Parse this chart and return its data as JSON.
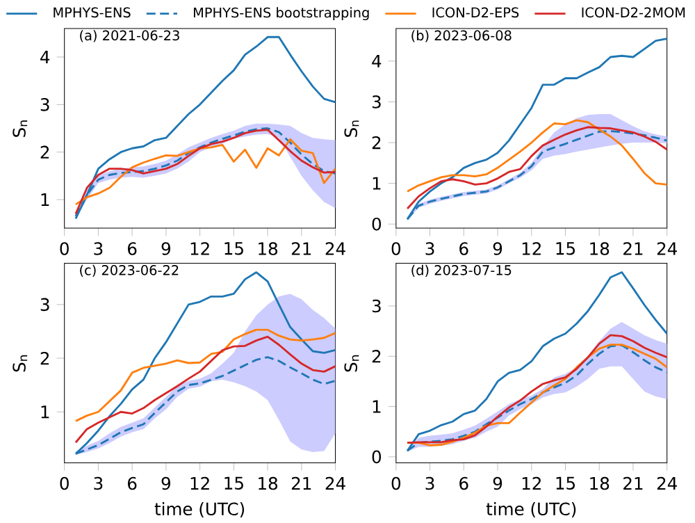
{
  "chart_data": [
    {
      "type": "line",
      "title": "(a) 2021-06-23",
      "ylabel": "S$_{n}$",
      "x": [
        1,
        2,
        3,
        4,
        5,
        6,
        7,
        8,
        9,
        10,
        11,
        12,
        13,
        14,
        15,
        16,
        17,
        18,
        19,
        20,
        21,
        22,
        23,
        24
      ],
      "xlim": [
        0,
        24
      ],
      "xticks": [
        0,
        3,
        6,
        9,
        12,
        15,
        18,
        21,
        24
      ],
      "ylim": [
        0.4,
        4.6
      ],
      "yticks": [
        1,
        2,
        3,
        4
      ],
      "legend": "top",
      "series": [
        {
          "name": "MPHYS-ENS",
          "color": "#1f77b4",
          "line_style": "solid",
          "values": [
            0.6,
            1.1,
            1.65,
            1.85,
            2.0,
            2.08,
            2.12,
            2.25,
            2.3,
            2.55,
            2.8,
            3.0,
            3.25,
            3.5,
            3.72,
            4.05,
            4.22,
            4.42,
            4.42,
            4.05,
            3.7,
            3.38,
            3.12,
            3.05
          ]
        },
        {
          "name": "MPHYS-ENS bootstrapping",
          "color": "#1f77b4",
          "line_style": "dashed",
          "values": [
            0.65,
            1.1,
            1.42,
            1.52,
            1.56,
            1.58,
            1.6,
            1.65,
            1.72,
            1.82,
            1.98,
            2.1,
            2.2,
            2.28,
            2.35,
            2.43,
            2.48,
            2.5,
            2.42,
            2.2,
            1.95,
            1.75,
            1.6,
            1.55
          ],
          "lower": [
            0.6,
            1.0,
            1.35,
            1.42,
            1.46,
            1.48,
            1.46,
            1.5,
            1.55,
            1.65,
            1.8,
            2.0,
            2.1,
            2.18,
            2.28,
            2.33,
            2.37,
            2.38,
            2.3,
            1.9,
            1.5,
            1.2,
            0.95,
            0.82
          ],
          "upper": [
            0.7,
            1.2,
            1.5,
            1.6,
            1.65,
            1.68,
            1.7,
            1.75,
            1.82,
            1.95,
            2.1,
            2.2,
            2.3,
            2.38,
            2.45,
            2.55,
            2.6,
            2.6,
            2.58,
            2.55,
            2.4,
            2.3,
            2.27,
            2.25
          ]
        },
        {
          "name": "ICON-D2-EPS",
          "color": "#ff7f0e",
          "line_style": "solid",
          "values": [
            0.9,
            1.05,
            1.13,
            1.25,
            1.48,
            1.68,
            1.78,
            1.86,
            1.93,
            1.92,
            2.0,
            2.08,
            2.1,
            2.15,
            1.8,
            2.05,
            1.67,
            2.08,
            1.93,
            2.27,
            2.03,
            1.98,
            1.35,
            1.65
          ]
        },
        {
          "name": "ICON-D2-2MOM",
          "color": "#d62728",
          "line_style": "solid",
          "values": [
            0.7,
            1.25,
            1.52,
            1.65,
            1.65,
            1.62,
            1.55,
            1.6,
            1.65,
            1.75,
            1.92,
            2.08,
            2.17,
            2.22,
            2.3,
            2.4,
            2.45,
            2.47,
            2.25,
            2.02,
            1.82,
            1.68,
            1.57,
            1.58
          ]
        }
      ]
    },
    {
      "type": "line",
      "title": "(b) 2023-06-08",
      "ylabel": "S$_{n}$",
      "x": [
        1,
        2,
        3,
        4,
        5,
        6,
        7,
        8,
        9,
        10,
        11,
        12,
        13,
        14,
        15,
        16,
        17,
        18,
        19,
        20,
        21,
        22,
        23,
        24
      ],
      "xlim": [
        0,
        24
      ],
      "xticks": [
        0,
        3,
        6,
        9,
        12,
        15,
        18,
        21,
        24
      ],
      "ylim": [
        -0.1,
        4.8
      ],
      "yticks": [
        0,
        1,
        2,
        3,
        4
      ],
      "series": [
        {
          "color": "#1f77b4",
          "line_style": "solid",
          "values": [
            0.12,
            0.55,
            0.8,
            1.0,
            1.15,
            1.38,
            1.5,
            1.58,
            1.75,
            2.05,
            2.45,
            2.85,
            3.42,
            3.42,
            3.58,
            3.58,
            3.72,
            3.85,
            4.1,
            4.13,
            4.1,
            4.3,
            4.5,
            4.55
          ]
        },
        {
          "color": "#1f77b4",
          "line_style": "dashed",
          "values": [
            0.12,
            0.45,
            0.55,
            0.62,
            0.68,
            0.74,
            0.77,
            0.8,
            0.9,
            1.05,
            1.2,
            1.42,
            1.78,
            1.88,
            1.97,
            2.07,
            2.17,
            2.27,
            2.28,
            2.26,
            2.22,
            2.18,
            2.12,
            2.05
          ],
          "lower": [
            0.08,
            0.4,
            0.5,
            0.57,
            0.63,
            0.69,
            0.72,
            0.75,
            0.85,
            1.0,
            1.14,
            1.32,
            1.6,
            1.68,
            1.72,
            1.78,
            1.83,
            1.88,
            1.93,
            1.97,
            2.0,
            2.0,
            2.0,
            1.98
          ],
          "upper": [
            0.16,
            0.5,
            0.6,
            0.67,
            0.73,
            0.79,
            0.82,
            0.85,
            0.95,
            1.1,
            1.26,
            1.5,
            1.9,
            2.25,
            2.45,
            2.6,
            2.68,
            2.7,
            2.7,
            2.55,
            2.4,
            2.28,
            2.2,
            2.15
          ]
        },
        {
          "color": "#ff7f0e",
          "line_style": "solid",
          "values": [
            0.8,
            0.95,
            1.05,
            1.15,
            1.2,
            1.2,
            1.17,
            1.22,
            1.38,
            1.58,
            1.78,
            2.0,
            2.25,
            2.47,
            2.45,
            2.55,
            2.5,
            2.32,
            2.15,
            1.93,
            1.6,
            1.25,
            1.0,
            0.97
          ]
        },
        {
          "color": "#d62728",
          "line_style": "solid",
          "values": [
            0.38,
            0.68,
            0.88,
            1.05,
            1.1,
            1.05,
            0.97,
            1.0,
            1.12,
            1.28,
            1.35,
            1.67,
            1.93,
            2.07,
            2.2,
            2.3,
            2.38,
            2.36,
            2.35,
            2.3,
            2.25,
            2.15,
            2.02,
            1.83
          ]
        }
      ]
    },
    {
      "type": "line",
      "title": "(c) 2023-06-22",
      "xlabel": "time (UTC)",
      "ylabel": "S$_{n}$",
      "x": [
        1,
        2,
        3,
        4,
        5,
        6,
        7,
        8,
        9,
        10,
        11,
        12,
        13,
        14,
        15,
        16,
        17,
        18,
        19,
        20,
        21,
        22,
        23,
        24
      ],
      "xlim": [
        0,
        24
      ],
      "xticks": [
        0,
        3,
        6,
        9,
        12,
        15,
        18,
        21,
        24
      ],
      "ylim": [
        0.05,
        3.77
      ],
      "yticks": [
        1,
        2,
        3
      ],
      "series": [
        {
          "color": "#1f77b4",
          "line_style": "solid",
          "values": [
            0.22,
            0.42,
            0.65,
            0.92,
            1.15,
            1.42,
            1.6,
            2.0,
            2.3,
            2.65,
            3.0,
            3.05,
            3.15,
            3.15,
            3.2,
            3.47,
            3.6,
            3.43,
            3.0,
            2.58,
            2.35,
            2.13,
            2.1,
            2.15
          ]
        },
        {
          "color": "#1f77b4",
          "line_style": "dashed",
          "values": [
            0.22,
            0.3,
            0.38,
            0.5,
            0.62,
            0.7,
            0.77,
            0.98,
            1.18,
            1.38,
            1.5,
            1.53,
            1.6,
            1.67,
            1.77,
            1.87,
            1.97,
            2.02,
            1.95,
            1.83,
            1.72,
            1.6,
            1.52,
            1.58
          ],
          "lower": [
            0.2,
            0.25,
            0.32,
            0.42,
            0.54,
            0.62,
            0.68,
            0.88,
            1.05,
            1.28,
            1.43,
            1.47,
            1.57,
            1.6,
            1.55,
            1.48,
            1.38,
            1.22,
            0.85,
            0.45,
            0.3,
            0.25,
            0.27,
            0.6
          ],
          "upper": [
            0.26,
            0.37,
            0.46,
            0.6,
            0.72,
            0.8,
            0.88,
            1.08,
            1.28,
            1.48,
            1.58,
            1.62,
            1.72,
            1.9,
            2.1,
            2.5,
            2.8,
            3.0,
            3.15,
            3.2,
            3.1,
            2.9,
            2.75,
            2.55
          ]
        },
        {
          "color": "#ff7f0e",
          "line_style": "solid",
          "values": [
            0.83,
            0.93,
            1.0,
            1.2,
            1.4,
            1.73,
            1.82,
            1.86,
            1.9,
            1.96,
            1.91,
            1.92,
            2.08,
            2.12,
            2.35,
            2.45,
            2.53,
            2.53,
            2.42,
            2.35,
            2.33,
            2.35,
            2.38,
            2.47
          ]
        },
        {
          "color": "#d62728",
          "line_style": "solid",
          "values": [
            0.43,
            0.68,
            0.8,
            0.9,
            1.0,
            0.97,
            1.07,
            1.22,
            1.35,
            1.48,
            1.62,
            1.75,
            1.95,
            2.15,
            2.22,
            2.23,
            2.33,
            2.4,
            2.25,
            2.07,
            1.9,
            1.78,
            1.75,
            1.85
          ]
        }
      ]
    },
    {
      "type": "line",
      "title": "(d) 2023-07-15",
      "xlabel": "time (UTC)",
      "ylabel": "S$_{n}$",
      "x": [
        1,
        2,
        3,
        4,
        5,
        6,
        7,
        8,
        9,
        10,
        11,
        12,
        13,
        14,
        15,
        16,
        17,
        18,
        19,
        20,
        21,
        22,
        23,
        24
      ],
      "xlim": [
        0,
        24
      ],
      "xticks": [
        0,
        3,
        6,
        9,
        12,
        15,
        18,
        21,
        24
      ],
      "ylim": [
        -0.12,
        3.85
      ],
      "yticks": [
        0,
        1,
        2,
        3
      ],
      "series": [
        {
          "color": "#1f77b4",
          "line_style": "solid",
          "values": [
            0.12,
            0.45,
            0.52,
            0.63,
            0.7,
            0.85,
            0.92,
            1.15,
            1.5,
            1.67,
            1.73,
            1.9,
            2.2,
            2.35,
            2.45,
            2.65,
            2.9,
            3.22,
            3.57,
            3.67,
            3.35,
            3.02,
            2.72,
            2.45
          ]
        },
        {
          "color": "#1f77b4",
          "line_style": "dashed",
          "values": [
            0.12,
            0.28,
            0.3,
            0.32,
            0.35,
            0.42,
            0.5,
            0.65,
            0.78,
            0.92,
            1.05,
            1.15,
            1.28,
            1.38,
            1.47,
            1.62,
            1.85,
            2.05,
            2.2,
            2.22,
            2.08,
            1.92,
            1.78,
            1.68
          ],
          "lower": [
            0.1,
            0.2,
            0.2,
            0.22,
            0.25,
            0.32,
            0.38,
            0.5,
            0.6,
            0.82,
            0.95,
            1.05,
            1.18,
            1.25,
            1.28,
            1.4,
            1.55,
            1.75,
            1.8,
            1.8,
            1.55,
            1.3,
            1.2,
            1.15
          ],
          "upper": [
            0.14,
            0.38,
            0.42,
            0.44,
            0.47,
            0.54,
            0.62,
            0.76,
            0.9,
            1.05,
            1.15,
            1.22,
            1.35,
            1.58,
            1.65,
            1.78,
            2.0,
            2.3,
            2.55,
            2.68,
            2.55,
            2.42,
            2.32,
            2.25
          ]
        },
        {
          "color": "#ff7f0e",
          "line_style": "solid",
          "values": [
            0.28,
            0.28,
            0.23,
            0.24,
            0.3,
            0.38,
            0.48,
            0.62,
            0.67,
            0.67,
            0.88,
            1.08,
            1.28,
            1.42,
            1.55,
            1.78,
            1.98,
            2.15,
            2.23,
            2.23,
            2.15,
            2.05,
            1.95,
            1.78
          ]
        },
        {
          "color": "#d62728",
          "line_style": "solid",
          "values": [
            0.28,
            0.29,
            0.29,
            0.29,
            0.33,
            0.35,
            0.43,
            0.6,
            0.8,
            0.98,
            1.12,
            1.3,
            1.45,
            1.52,
            1.58,
            1.75,
            1.98,
            2.25,
            2.42,
            2.4,
            2.3,
            2.17,
            2.07,
            1.98
          ]
        }
      ]
    }
  ]
}
